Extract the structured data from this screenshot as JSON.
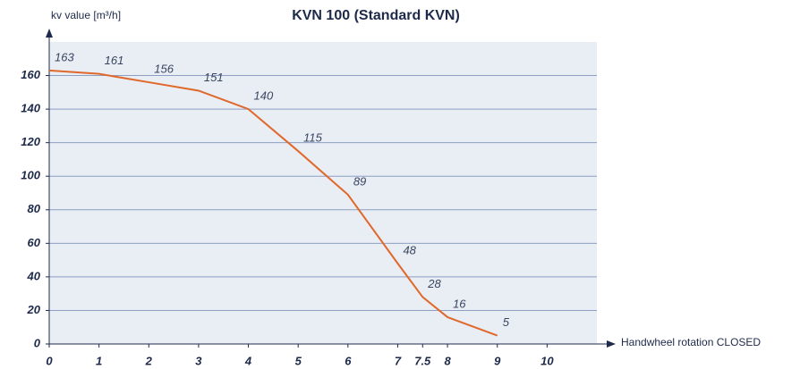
{
  "chart_data": {
    "type": "line",
    "title": "KVN 100 (Standard KVN)",
    "y_label": "kv value [m³/h]",
    "x_label": "Handwheel rotation CLOSED",
    "x": [
      0,
      1,
      2,
      3,
      4,
      5,
      6,
      7,
      7.5,
      8,
      9
    ],
    "series": [
      {
        "name": "KVN 100",
        "color": "#e0682a",
        "values": [
          163,
          161,
          156,
          151,
          140,
          115,
          89,
          48,
          28,
          16,
          5
        ]
      }
    ],
    "xlim": [
      0,
      11
    ],
    "xticks": [
      0,
      1,
      2,
      3,
      4,
      5,
      6,
      7,
      7.5,
      8,
      9,
      10
    ],
    "ylim": [
      0,
      180
    ],
    "yticks": [
      0,
      20,
      40,
      60,
      80,
      100,
      120,
      140,
      160
    ],
    "grid": true
  }
}
